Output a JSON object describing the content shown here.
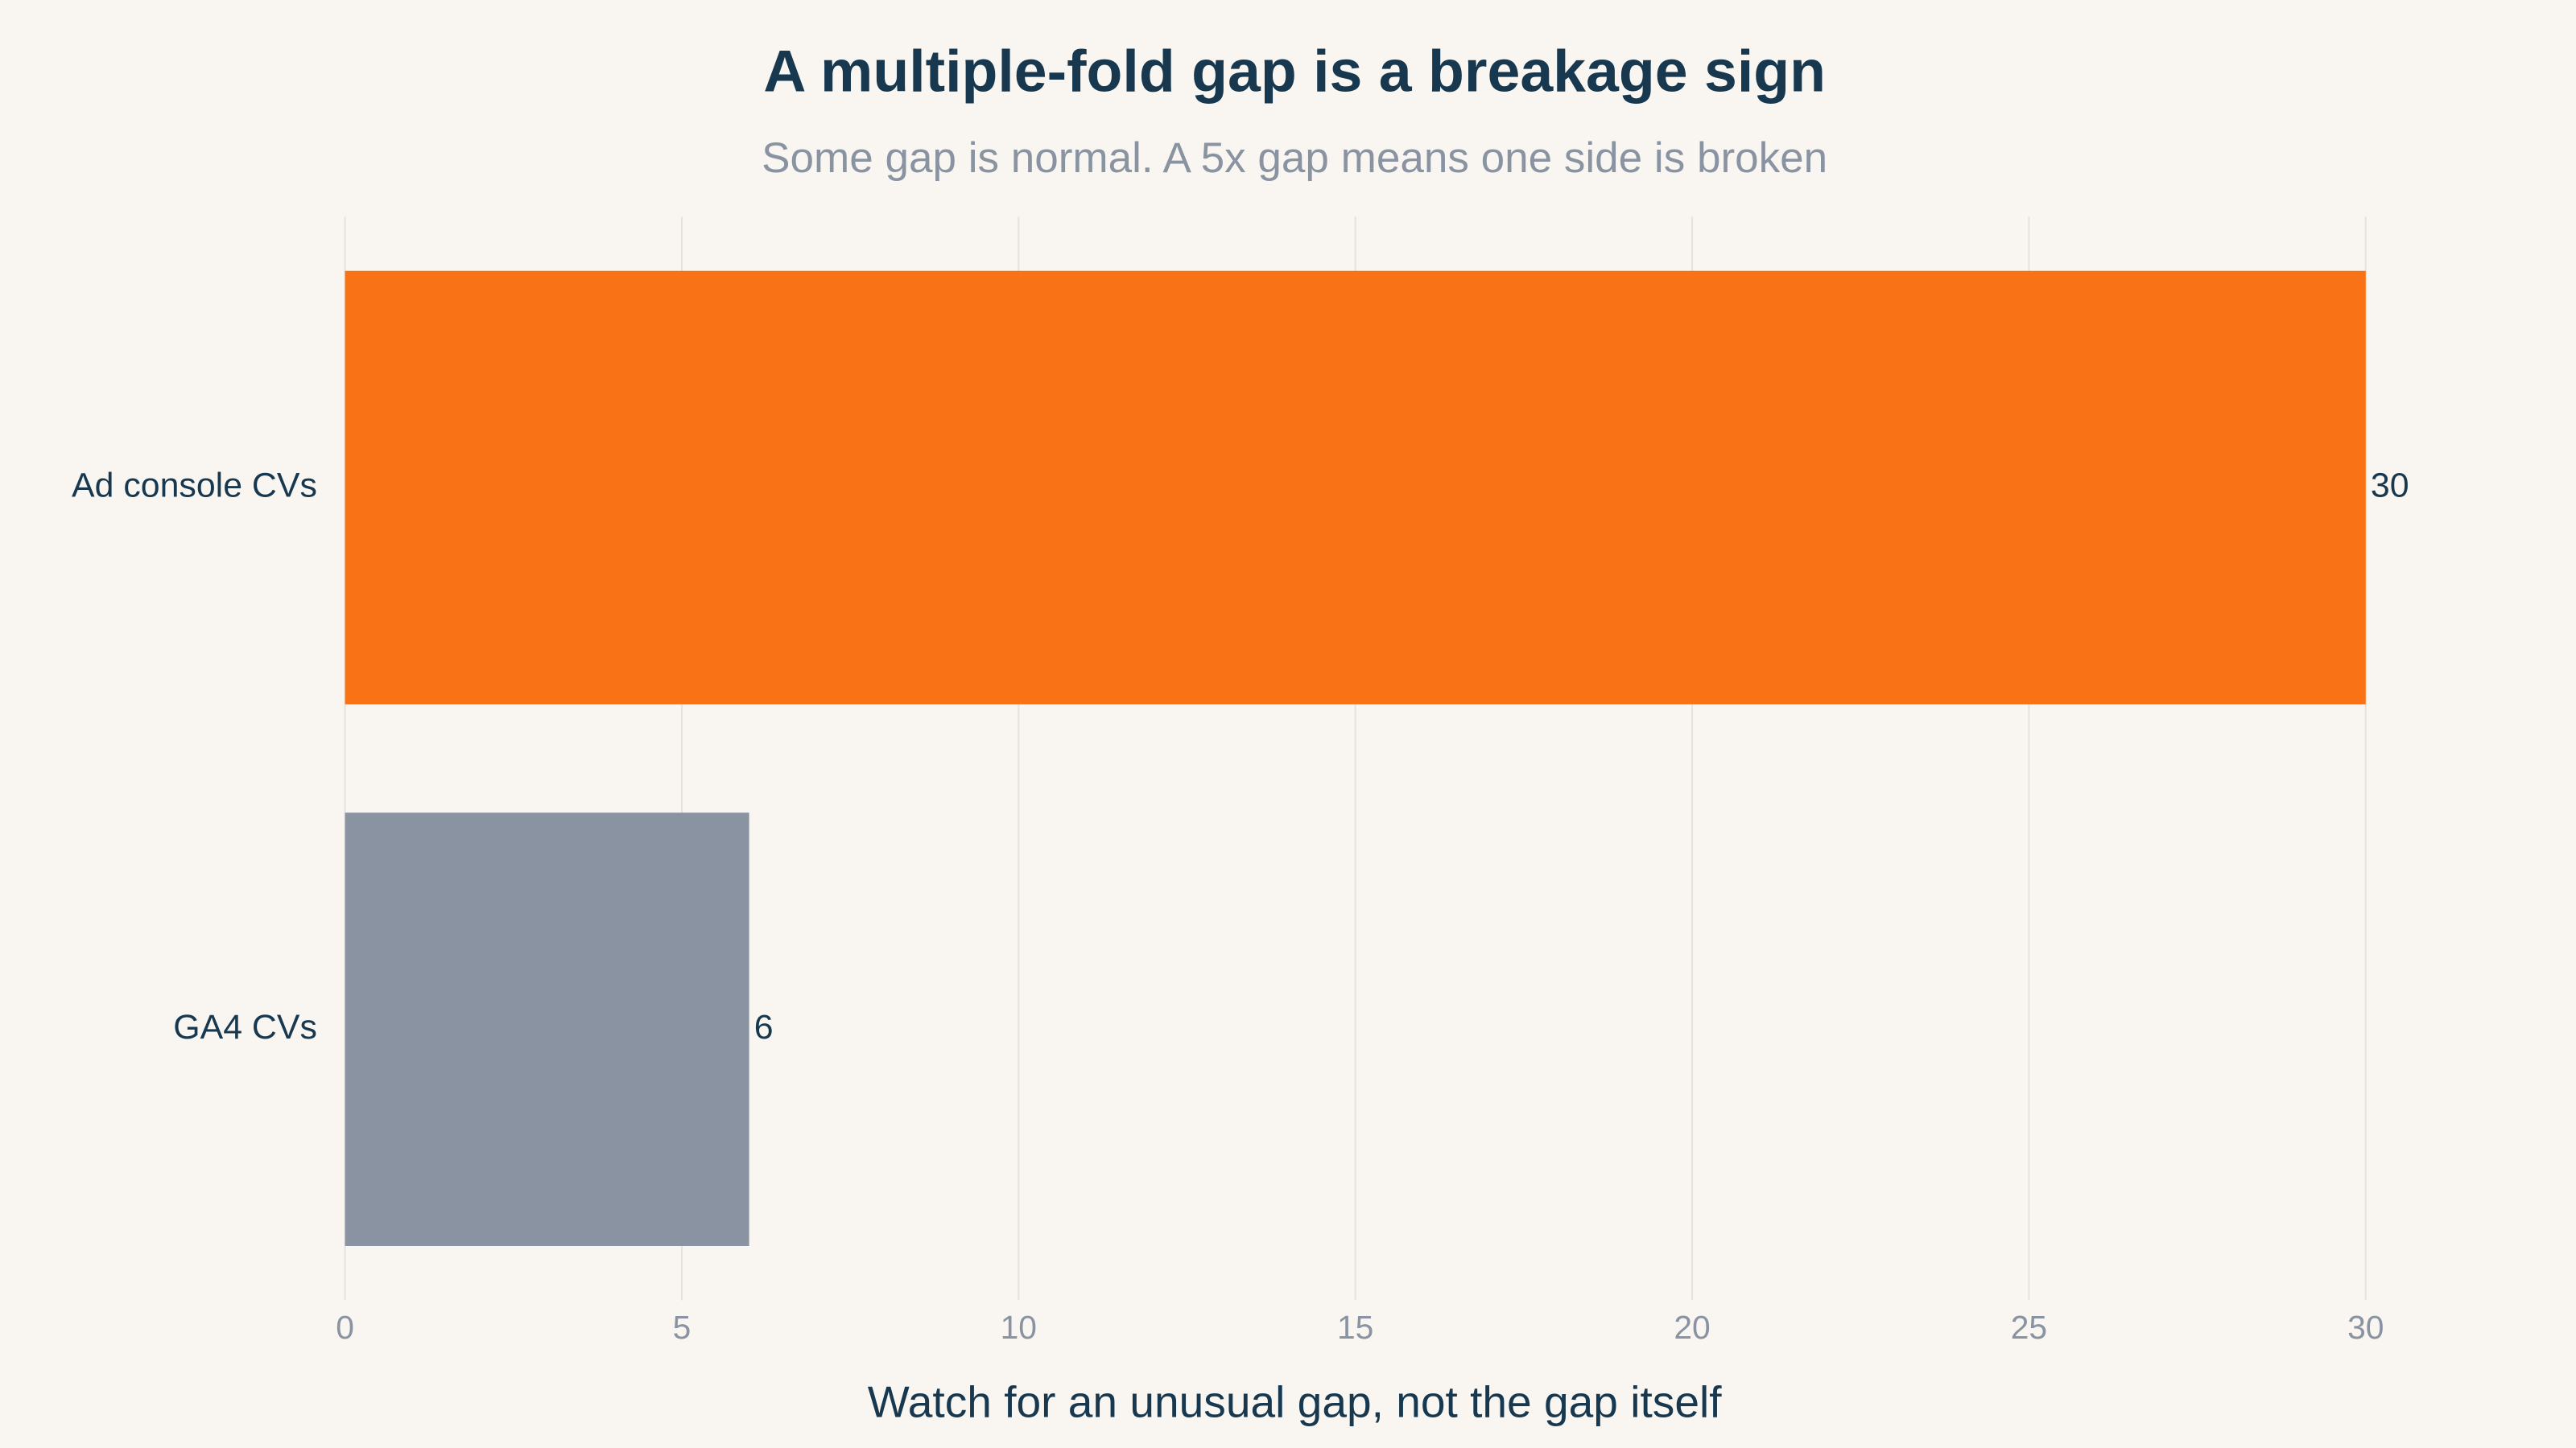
{
  "chart_data": {
    "type": "hbar",
    "title": "A multiple-fold gap is a breakage sign",
    "subtitle": "Some gap is normal. A 5x gap means one side is broken",
    "x_label": "Watch for an unusual gap, not the gap itself",
    "categories": [
      "Ad console CVs",
      "GA4 CVs"
    ],
    "values": [
      30,
      6
    ],
    "colors": [
      "#f97316",
      "#8a93a2"
    ],
    "xlim": [
      0,
      30
    ],
    "xticks": [
      0,
      5,
      10,
      15,
      20,
      25,
      30
    ],
    "grid": true
  }
}
